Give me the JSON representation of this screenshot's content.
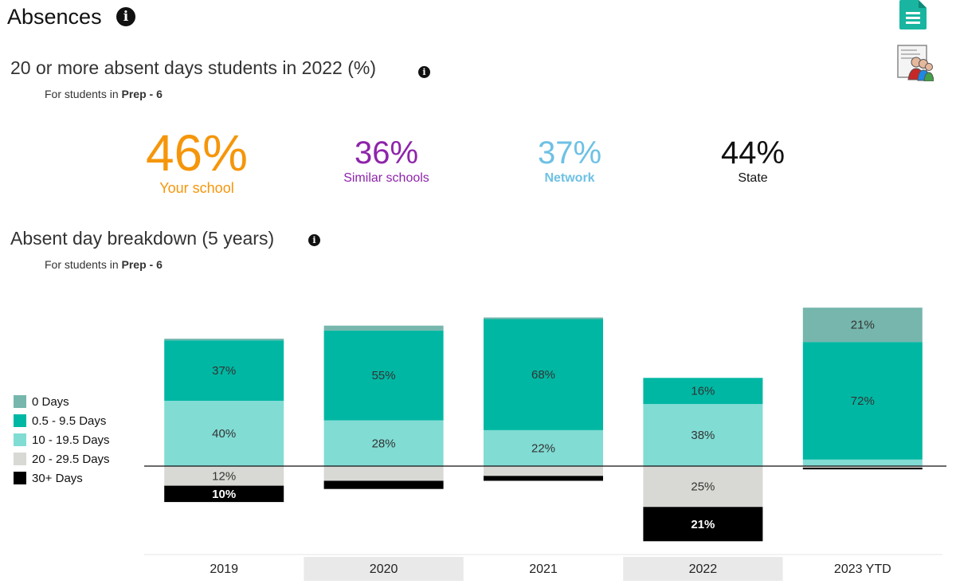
{
  "header": {
    "title": "Absences",
    "doc_icon": "document-icon",
    "report_icon": "student-report-icon"
  },
  "absent_summary": {
    "title": "20 or more absent days students in 2022 (%)",
    "subtitle_prefix": "For students in",
    "subtitle_level": "Prep - 6",
    "stats": {
      "school": {
        "value": "46%",
        "label": "Your school",
        "color": "#f5960a"
      },
      "similar": {
        "value": "36%",
        "label": "Similar schools",
        "color": "#8e24aa"
      },
      "network": {
        "value": "37%",
        "label": "Network",
        "color": "#6ec1e4"
      },
      "state": {
        "value": "44%",
        "label": "State",
        "color": "#111111"
      }
    }
  },
  "breakdown": {
    "title": "Absent day breakdown (5 years)",
    "subtitle_prefix": "For students in",
    "subtitle_level": "Prep - 6"
  },
  "chart_data": {
    "type": "bar",
    "stacked": "diverging",
    "categories": [
      "2019",
      "2020",
      "2021",
      "2022",
      "2023 YTD"
    ],
    "series": [
      {
        "name": "0 Days",
        "color": "#76b6ad",
        "direction": "up",
        "values": [
          1,
          3,
          1,
          0,
          21
        ],
        "labels": [
          "",
          "",
          "",
          "",
          "21%"
        ]
      },
      {
        "name": "0.5 - 9.5 Days",
        "color": "#00b7a3",
        "direction": "up",
        "values": [
          37,
          55,
          68,
          16,
          72
        ],
        "labels": [
          "37%",
          "55%",
          "68%",
          "16%",
          "72%"
        ]
      },
      {
        "name": "10 - 19.5 Days",
        "color": "#81dcd4",
        "direction": "up",
        "values": [
          40,
          28,
          22,
          38,
          4
        ],
        "labels": [
          "40%",
          "28%",
          "22%",
          "38%",
          ""
        ]
      },
      {
        "name": "20 - 29.5 Days",
        "color": "#d8d8d4",
        "direction": "down",
        "values": [
          12,
          9,
          6,
          25,
          1
        ],
        "labels": [
          "12%",
          "",
          "",
          "25%",
          ""
        ]
      },
      {
        "name": "30+ Days",
        "color": "#000000",
        "direction": "down",
        "values": [
          10,
          5,
          3,
          21,
          1
        ],
        "labels": [
          "10%",
          "",
          "",
          "21%",
          ""
        ]
      }
    ],
    "alternate_column_shading": true,
    "legend_position": "left"
  }
}
